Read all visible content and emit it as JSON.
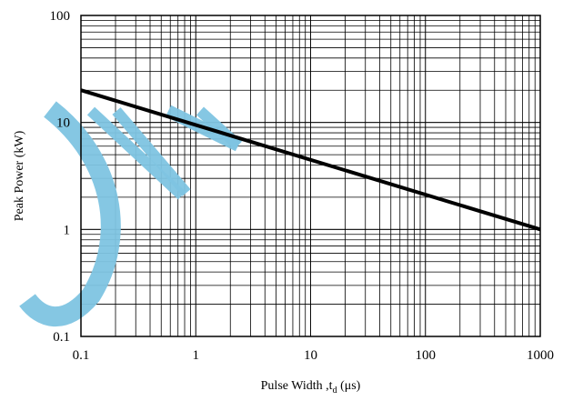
{
  "chart_data": {
    "type": "line",
    "title": "",
    "xlabel": "Pulse Width ,t",
    "xlabel_sub": "d",
    "xlabel_unit": " (μs)",
    "ylabel": "Peak Power (kW)",
    "xscale": "log",
    "yscale": "log",
    "xlim": [
      0.1,
      1000
    ],
    "ylim": [
      0.1,
      100
    ],
    "xticks": [
      {
        "value": 0.1,
        "label": "0.1"
      },
      {
        "value": 1,
        "label": "1"
      },
      {
        "value": 10,
        "label": "10"
      },
      {
        "value": 100,
        "label": "100"
      },
      {
        "value": 1000,
        "label": "1000"
      }
    ],
    "yticks": [
      {
        "value": 0.1,
        "label": "0.1"
      },
      {
        "value": 1,
        "label": "1"
      },
      {
        "value": 10,
        "label": "10"
      },
      {
        "value": 100,
        "label": "100"
      }
    ],
    "grid": true,
    "series": [
      {
        "x": [
          0.1,
          1000
        ],
        "y": [
          20,
          1
        ],
        "color": "#000000"
      }
    ],
    "watermark_color": "#7ec4e2"
  }
}
